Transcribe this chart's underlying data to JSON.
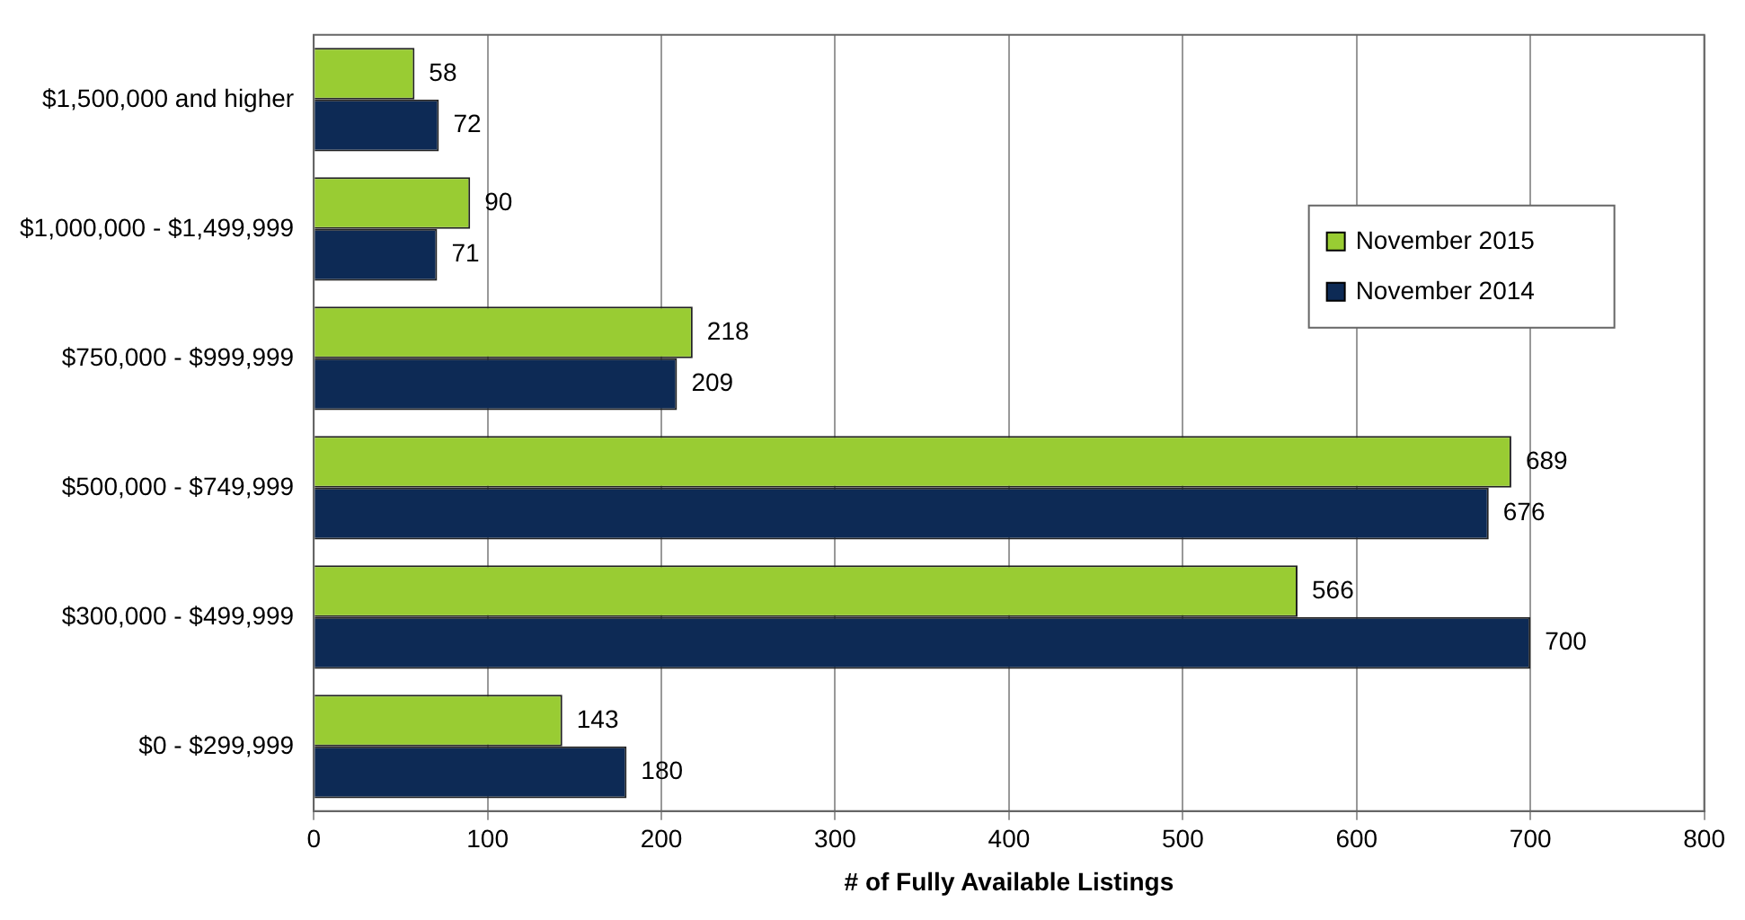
{
  "chart_data": {
    "type": "bar",
    "orientation": "horizontal",
    "xlabel": "# of Fully Available Listings",
    "categories": [
      "$1,500,000 and higher",
      "$1,000,000 - $1,499,999",
      "$750,000 - $999,999",
      "$500,000 - $749,999",
      "$300,000 - $499,999",
      "$0 - $299,999"
    ],
    "series": [
      {
        "name": "November 2015",
        "color": "#99cc33",
        "values": [
          58,
          90,
          218,
          689,
          566,
          143
        ]
      },
      {
        "name": "November 2014",
        "color": "#0d2a55",
        "values": [
          72,
          71,
          209,
          676,
          700,
          180
        ]
      }
    ],
    "xlim": [
      0,
      800
    ],
    "xticks": [
      0,
      100,
      200,
      300,
      400,
      500,
      600,
      700,
      800
    ],
    "grid": "x",
    "legend": "top right",
    "data_labels": true
  }
}
